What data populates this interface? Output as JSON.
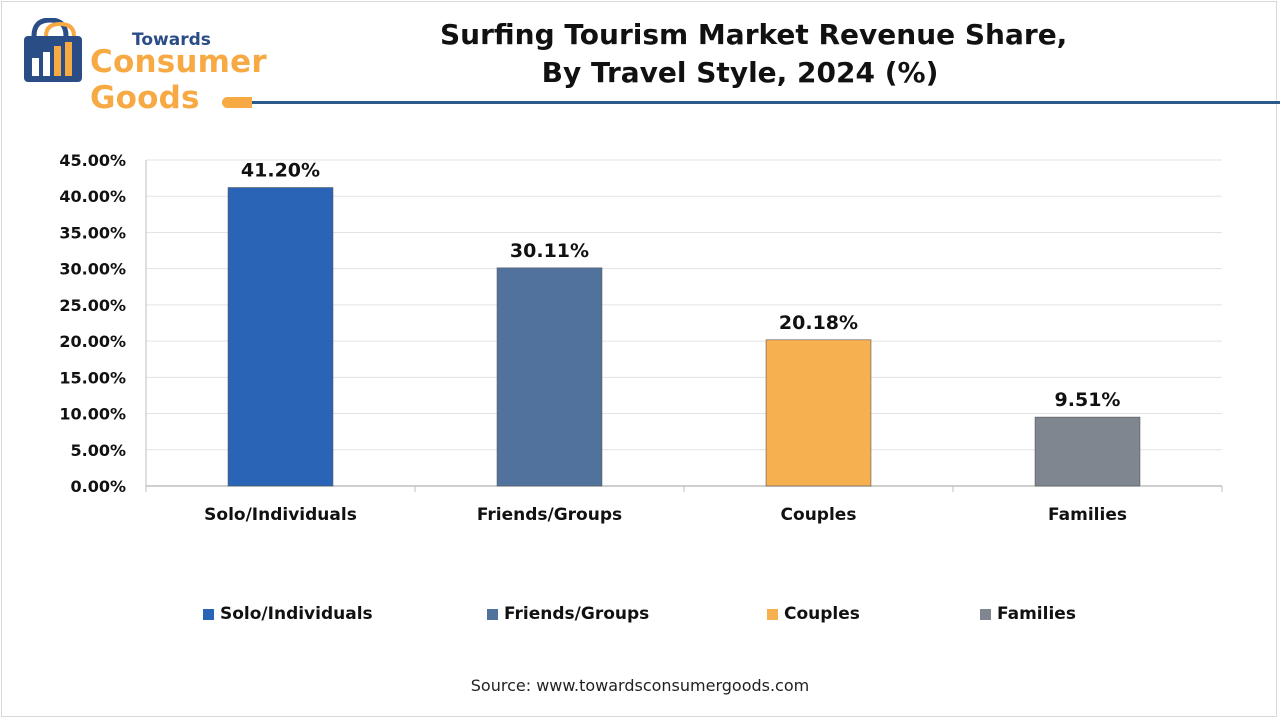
{
  "header": {
    "logo_top": "Towards",
    "logo_main": "Consumer Goods",
    "title_line1": "Surfing Tourism Market Revenue Share,",
    "title_line2": "By Travel Style, 2024 (%)"
  },
  "chart_data": {
    "type": "bar",
    "categories": [
      "Solo/Individuals",
      "Friends/Groups",
      "Couples",
      "Families"
    ],
    "values": [
      41.2,
      30.11,
      20.18,
      9.51
    ],
    "data_labels": [
      "41.20%",
      "30.11%",
      "20.18%",
      "9.51%"
    ],
    "colors": [
      "#2a64b6",
      "#52729e",
      "#f7b04f",
      "#7f868f"
    ],
    "ylim": [
      0,
      45
    ],
    "yticks": [
      0,
      5,
      10,
      15,
      20,
      25,
      30,
      35,
      40,
      45
    ],
    "ytick_labels": [
      "0.00%",
      "5.00%",
      "10.00%",
      "15.00%",
      "20.00%",
      "25.00%",
      "30.00%",
      "35.00%",
      "40.00%",
      "45.00%"
    ],
    "grid": true,
    "legend_position": "bottom",
    "title": "Surfing Tourism Market Revenue Share, By Travel Style, 2024 (%)",
    "xlabel": "",
    "ylabel": ""
  },
  "footer": {
    "source": "Source: www.towardsconsumergoods.com"
  }
}
